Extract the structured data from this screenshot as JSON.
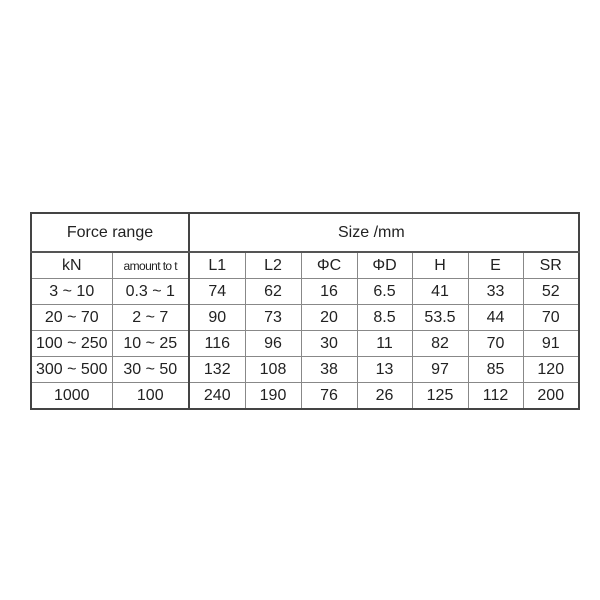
{
  "table": {
    "group_headers": {
      "force": "Force range",
      "size": "Size /mm"
    },
    "columns": [
      "kN",
      "amount to t",
      "L1",
      "L2",
      "ΦC",
      "ΦD",
      "H",
      "E",
      "SR"
    ],
    "rows": [
      [
        "3 ~ 10",
        "0.3 ~ 1",
        "74",
        "62",
        "16",
        "6.5",
        "41",
        "33",
        "52"
      ],
      [
        "20 ~ 70",
        "2 ~ 7",
        "90",
        "73",
        "20",
        "8.5",
        "53.5",
        "44",
        "70"
      ],
      [
        "100 ~ 250",
        "10 ~ 25",
        "116",
        "96",
        "30",
        "11",
        "82",
        "70",
        "91"
      ],
      [
        "300 ~ 500",
        "30 ~ 50",
        "132",
        "108",
        "38",
        "13",
        "97",
        "85",
        "120"
      ],
      [
        "1000",
        "100",
        "240",
        "190",
        "76",
        "26",
        "125",
        "112",
        "200"
      ]
    ]
  }
}
